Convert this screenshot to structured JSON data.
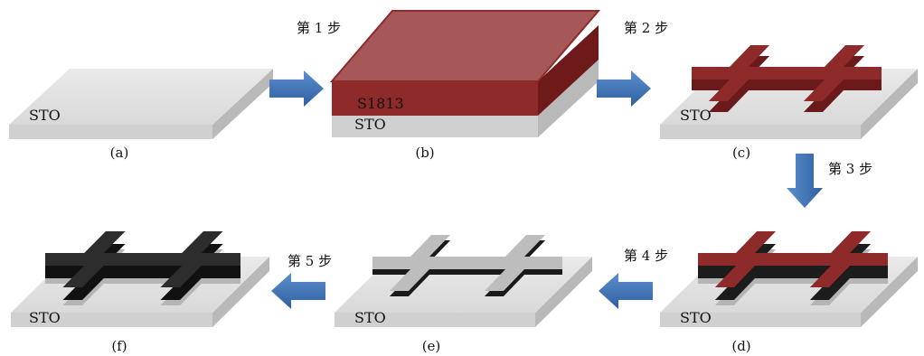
{
  "panels": [
    {
      "id": "a",
      "caption": "(a)",
      "substrate": "STO"
    },
    {
      "id": "b",
      "caption": "(b)",
      "substrate": "STO",
      "layer": "S1813"
    },
    {
      "id": "c",
      "caption": "(c)",
      "substrate": "STO"
    },
    {
      "id": "d",
      "caption": "(d)",
      "substrate": "STO"
    },
    {
      "id": "e",
      "caption": "(e)",
      "substrate": "STO"
    },
    {
      "id": "f",
      "caption": "(f)",
      "substrate": "STO"
    }
  ],
  "steps": [
    "第 1 步",
    "第 2 步",
    "第 3 步",
    "第 4 步",
    "第 5 步"
  ],
  "colors": {
    "substrate_top": "#e3e3e3",
    "substrate_front": "#d2d2d2",
    "substrate_side": "#b7b7b7",
    "resist": "#8e2a2a",
    "resist_top": "#a65a5a",
    "resist_side": "#6e1a1a",
    "film_dark": "#222222",
    "film_gray": "#bdbdbd",
    "arrow": "#3f72b4"
  }
}
